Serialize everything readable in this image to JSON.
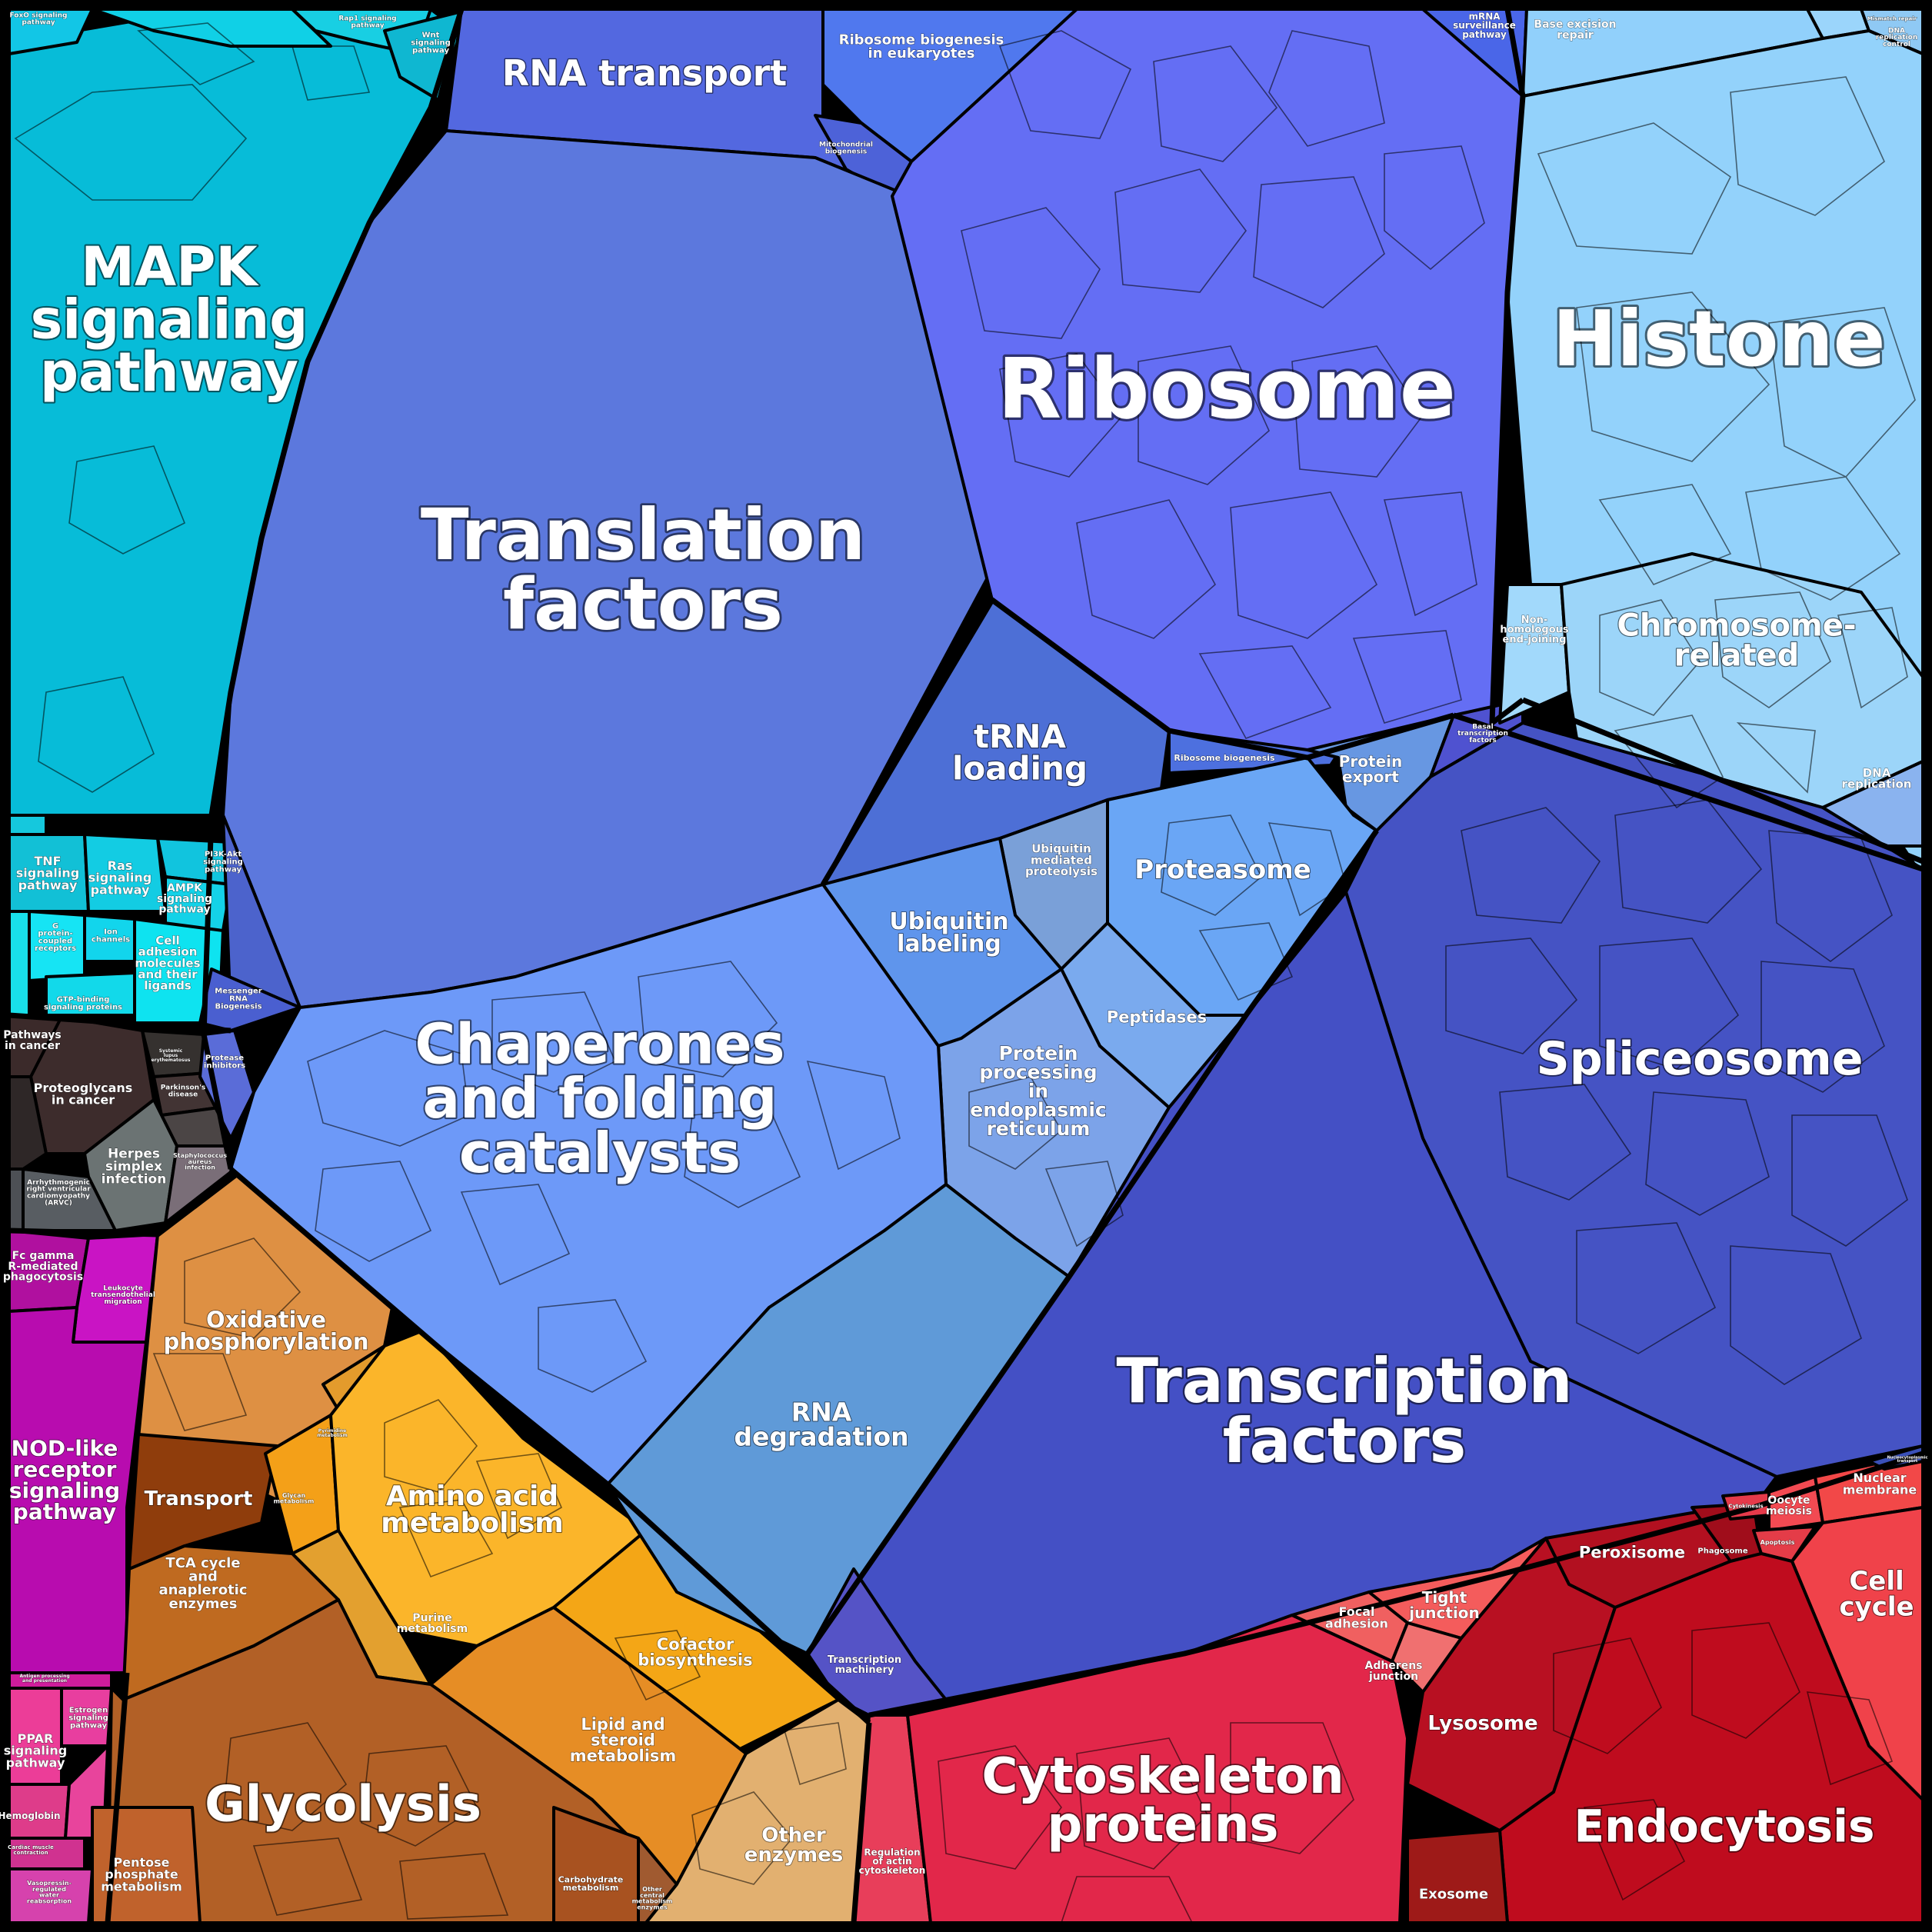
{
  "labels": {
    "mapk": [
      "MAPK",
      "signaling",
      "pathway"
    ],
    "rna_transport": [
      "RNA transport"
    ],
    "ribosome_biogenesis_euk": [
      "Ribosome biogenesis",
      "in eukaryotes"
    ],
    "mitochondrial_biogenesis": [
      "Mitochondrial",
      "biogenesis"
    ],
    "mrna_surveillance": [
      "mRNA",
      "surveillance",
      "pathway"
    ],
    "base_excision": [
      "Base excision",
      "repair"
    ],
    "mismatch": [
      "Mismatch repair"
    ],
    "dna_replication_control": [
      "DNA",
      "replication",
      "control"
    ],
    "ribosome": [
      "Ribosome"
    ],
    "histone": [
      "Histone"
    ],
    "translation_factors": [
      "Translation",
      "factors"
    ],
    "chromosome": [
      "Chromosome-",
      "related"
    ],
    "nhej": [
      "Non-",
      "homologous",
      "end-joining"
    ],
    "dna_replication": [
      "DNA",
      "replication"
    ],
    "trna": [
      "tRNA",
      "loading"
    ],
    "ribosome_biogenesis": [
      "Ribosome biogenesis"
    ],
    "protein_export": [
      "Protein",
      "export"
    ],
    "basal_tf": [
      "Basal",
      "transcription",
      "factors"
    ],
    "proteasome": [
      "Proteasome"
    ],
    "ubiquitin_mediated": [
      "Ubiquitin",
      "mediated",
      "proteolysis"
    ],
    "ubiquitin_labeling": [
      "Ubiquitin",
      "labeling"
    ],
    "peptidases": [
      "Peptidases"
    ],
    "spliceosome": [
      "Spliceosome"
    ],
    "chaperones": [
      "Chaperones",
      "and folding",
      "catalysts"
    ],
    "protein_processing": [
      "Protein",
      "processing",
      "in",
      "endoplasmic",
      "reticulum"
    ],
    "messenger_rna": [
      "Messenger",
      "RNA",
      "Biogenesis"
    ],
    "protease_inhibitors": [
      "Protease",
      "inhibitors"
    ],
    "rna_degradation": [
      "RNA",
      "degradation"
    ],
    "transcription_factors": [
      "Transcription",
      "factors"
    ],
    "transcription_machinery": [
      "Transcription",
      "machinery"
    ],
    "foxo": [
      "FoxO signaling",
      "pathway"
    ],
    "rap1": [
      "Rap1 signaling",
      "pathway"
    ],
    "wnt": [
      "Wnt",
      "signaling",
      "pathway"
    ],
    "tnf": [
      "TNF",
      "signaling",
      "pathway"
    ],
    "ras": [
      "Ras",
      "signaling",
      "pathway"
    ],
    "pi3k": [
      "PI3K-Akt",
      "signaling",
      "pathway"
    ],
    "ampk": [
      "AMPK",
      "signaling",
      "pathway"
    ],
    "gpcr": [
      "G",
      "protein-",
      "coupled",
      "receptors"
    ],
    "ion_channels": [
      "Ion",
      "channels"
    ],
    "cam": [
      "Cell",
      "adhesion",
      "molecules",
      "and their",
      "ligands"
    ],
    "gtp_binding": [
      "GTP-binding",
      "signaling proteins"
    ],
    "pathways_cancer": [
      "Pathways",
      "in cancer"
    ],
    "proteoglycans": [
      "Proteoglycans",
      "in cancer"
    ],
    "parkinsons": [
      "Parkinson's",
      "disease"
    ],
    "sle": [
      "Systemic",
      "lupus",
      "erythematosus"
    ],
    "herpes": [
      "Herpes",
      "simplex",
      "infection"
    ],
    "staph": [
      "Staphylococcus",
      "aureus",
      "infection"
    ],
    "arvc": [
      "Arrhythmogenic",
      "right ventricular",
      "cardiomyopathy",
      "(ARVC)"
    ],
    "fc_gamma": [
      "Fc gamma",
      "R-mediated",
      "phagocytosis"
    ],
    "leukocyte": [
      "Leukocyte",
      "transendothelial",
      "migration"
    ],
    "nod": [
      "NOD-like",
      "receptor",
      "signaling",
      "pathway"
    ],
    "antigen": [
      "Antigen processing",
      "and presentation"
    ],
    "estrogen": [
      "Estrogen",
      "signaling",
      "pathway"
    ],
    "ppar": [
      "PPAR",
      "signaling",
      "pathway"
    ],
    "hemoglobin": [
      "Hemoglobin"
    ],
    "cardiac": [
      "Cardiac muscle",
      "contraction"
    ],
    "vasopressin": [
      "Vasopressin-",
      "regulated",
      "water",
      "reabsorption"
    ],
    "oxphos": [
      "Oxidative",
      "phosphorylation"
    ],
    "transport": [
      "Transport"
    ],
    "glycan": [
      "Glycan",
      "metabolism"
    ],
    "pyrimidine": [
      "Pyrimidine",
      "metabolism"
    ],
    "amino_acid": [
      "Amino acid",
      "metabolism"
    ],
    "tca": [
      "TCA cycle",
      "and",
      "anaplerotic",
      "enzymes"
    ],
    "purine": [
      "Purine",
      "metabolism"
    ],
    "cofactor": [
      "Cofactor",
      "biosynthesis"
    ],
    "lipid": [
      "Lipid and",
      "steroid",
      "metabolism"
    ],
    "glycolysis": [
      "Glycolysis"
    ],
    "pentose": [
      "Pentose",
      "phosphate",
      "metabolism"
    ],
    "carbohydrate": [
      "Carbohydrate",
      "metabolism"
    ],
    "other_central": [
      "Other",
      "central",
      "metabolism",
      "enzymes"
    ],
    "other_enzymes": [
      "Other",
      "enzymes"
    ],
    "regulation_actin": [
      "Regulation",
      "of actin",
      "cytoskeleton"
    ],
    "cytoskeleton": [
      "Cytoskeleton",
      "proteins"
    ],
    "focal": [
      "Focal",
      "adhesion"
    ],
    "tight": [
      "Tight",
      "junction"
    ],
    "adherens": [
      "Adherens",
      "junction"
    ],
    "peroxisome": [
      "Peroxisome"
    ],
    "phagosome": [
      "Phagosome"
    ],
    "cytokinesis": [
      "Cytokinesis"
    ],
    "oocyte": [
      "Oocyte",
      "meiosis"
    ],
    "apoptosis": [
      "Apoptosis"
    ],
    "nuclear_membrane": [
      "Nuclear",
      "membrane"
    ],
    "cell_cycle": [
      "Cell",
      "cycle"
    ],
    "lysosome": [
      "Lysosome"
    ],
    "endocytosis": [
      "Endocytosis"
    ],
    "exosome": [
      "Exosome"
    ],
    "nucleocytoplasmic": [
      "Nucleocytoplasmic",
      "transport"
    ]
  },
  "colors": {
    "cyan": "#0bbdd9",
    "ribosome_blue": "#6068f2",
    "translation_blue": "#5b78dc",
    "light_blue": "#8fd0fb",
    "spliceosome": "#4653c4",
    "transcription": "#4550c6",
    "chaperone": "#6d9af7",
    "orange": "#f5a623",
    "brown": "#b5652a",
    "magenta": "#c010b0",
    "red": "#e0284a",
    "dark_red": "#b01020",
    "dark_gray": "#3a2a2a"
  }
}
